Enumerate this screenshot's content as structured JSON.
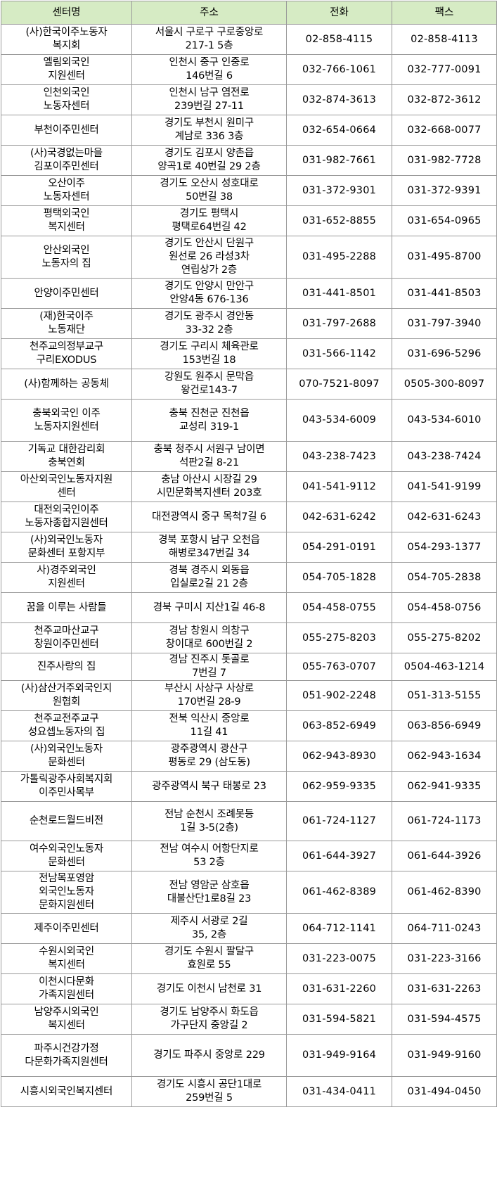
{
  "table": {
    "headers": [
      "센터명",
      "주소",
      "전화",
      "팩스"
    ],
    "rows": [
      {
        "name": "(사)한국이주노동자\n복지회",
        "address": "서울시 구로구 구로중앙로\n217-1 5층",
        "phone": "02-858-4115",
        "fax": "02-858-4113"
      },
      {
        "name": "엘림외국인\n지원센터",
        "address": "인천시 중구 인중로\n146번길 6",
        "phone": "032-766-1061",
        "fax": "032-777-0091"
      },
      {
        "name": "인천외국인\n노동자센터",
        "address": "인천시 남구 염전로\n239번길 27-11",
        "phone": "032-874-3613",
        "fax": "032-872-3612"
      },
      {
        "name": "부천이주민센터",
        "address": "경기도 부천시 원미구\n계남로 336 3층",
        "phone": "032-654-0664",
        "fax": "032-668-0077"
      },
      {
        "name": "(사)국경없는마을\n김포이주민센터",
        "address": "경기도 김포시 양촌읍\n양곡1로 40번길 29 2층",
        "phone": "031-982-7661",
        "fax": "031-982-7728"
      },
      {
        "name": "오산이주\n노동자센터",
        "address": "경기도 오산시 성호대로\n50번길 38",
        "phone": "031-372-9301",
        "fax": "031-372-9391"
      },
      {
        "name": "평택외국인\n복지센터",
        "address": "경기도 평택시\n평택로64번길 42",
        "phone": "031-652-8855",
        "fax": "031-654-0965"
      },
      {
        "name": "안산외국인\n노동자의 집",
        "address": "경기도 안산시 단원구\n원선로 26 라성3차\n연립상가 2층",
        "phone": "031-495-2288",
        "fax": "031-495-8700"
      },
      {
        "name": "안양이주민센터",
        "address": "경기도 안양시 만안구\n안양4동 676-136",
        "phone": "031-441-8501",
        "fax": "031-441-8503"
      },
      {
        "name": "(재)한국이주\n노동재단",
        "address": "경기도 광주시 경안동\n33-32 2층",
        "phone": "031-797-2688",
        "fax": "031-797-3940"
      },
      {
        "name": "천주교의정부교구\n구리EXODUS",
        "address": "경기도 구리시 체육관로\n153번길 18",
        "phone": "031-566-1142",
        "fax": "031-696-5296"
      },
      {
        "name": "(사)함께하는 공동체",
        "address": "강원도 원주시 문막읍\n왕건로143-7",
        "phone": "070-7521-8097",
        "fax": "0505-300-8097"
      },
      {
        "name": "충북외국인 이주\n노동자지원센터",
        "address": "충북 진천군 진천읍\n교성리 319-1",
        "phone": "043-534-6009",
        "fax": "043-534-6010"
      },
      {
        "name": "기독교 대한감리회\n충북연회",
        "address": "충북 청주시 서원구 남이면\n석판2길 8-21",
        "phone": "043-238-7423",
        "fax": "043-238-7424"
      },
      {
        "name": "아산외국인노동자지원\n센터",
        "address": "충남 아산시 시장길 29\n시민문화복지센터 203호",
        "phone": "041-541-9112",
        "fax": "041-541-9199"
      },
      {
        "name": "대전외국인이주\n노동자종합지원센터",
        "address": "대전광역시 중구 목척7길 6",
        "phone": "042-631-6242",
        "fax": "042-631-6243"
      },
      {
        "name": "(사)외국인노동자\n문화센터 포항지부",
        "address": "경북 포항시 남구 오천읍\n해병로347번길 34",
        "phone": "054-291-0191",
        "fax": "054-293-1377"
      },
      {
        "name": "사)경주외국인\n지원센터",
        "address": "경북 경주시 외동읍\n입실로2길 21 2층",
        "phone": "054-705-1828",
        "fax": "054-705-2838"
      },
      {
        "name": "꿈을 이루는 사람들",
        "address": "경북 구미시 지산1길 46-8",
        "phone": "054-458-0755",
        "fax": "054-458-0756"
      },
      {
        "name": "천주교마산교구\n창원이주민센터",
        "address": "경남 창원시 의창구\n창이대로 600번길 2",
        "phone": "055-275-8203",
        "fax": "055-275-8202"
      },
      {
        "name": "진주사랑의 집",
        "address": "경남 진주시 돗골로\n7번길 7",
        "phone": "055-763-0707",
        "fax": "0504-463-1214"
      },
      {
        "name": "(사)삼산거주외국인지\n원협회",
        "address": "부산시 사상구 사상로\n170번길 28-9",
        "phone": "051-902-2248",
        "fax": "051-313-5155"
      },
      {
        "name": "천주교전주교구\n성요셉노동자의 집",
        "address": "전북 익산시 중앙로\n11길 41",
        "phone": "063-852-6949",
        "fax": "063-856-6949"
      },
      {
        "name": "(사)외국인노동자\n문화센터",
        "address": "광주광역시 광산구\n평동로 29 (삼도동)",
        "phone": "062-943-8930",
        "fax": "062-943-1634"
      },
      {
        "name": "가톨릭광주사회복지회\n이주민사목부",
        "address": "광주광역시 북구 태봉로 23",
        "phone": "062-959-9335",
        "fax": "062-941-9335"
      },
      {
        "name": "순천로드월드비전",
        "address": "전남 순천시 조례못등\n1길 3-5(2층)",
        "phone": "061-724-1127",
        "fax": "061-724-1173"
      },
      {
        "name": "여수외국인노동자\n문화센터",
        "address": "전남 여수시 어항단지로\n53 2층",
        "phone": "061-644-3927",
        "fax": "061-644-3926"
      },
      {
        "name": "전남목포영암\n외국인노동자\n문화지원센터",
        "address": "전남 영암군 삼호읍\n대불산단1로8길 23",
        "phone": "061-462-8389",
        "fax": "061-462-8390"
      },
      {
        "name": "제주이주민센터",
        "address": "제주시 서광로 2길\n35, 2층",
        "phone": "064-712-1141",
        "fax": "064-711-0243"
      },
      {
        "name": "수원시외국인\n복지센터",
        "address": "경기도 수원시 팔달구\n효원로 55",
        "phone": "031-223-0075",
        "fax": "031-223-3166"
      },
      {
        "name": "이천시다문화\n가족지원센터",
        "address": "경기도 이천시 남천로 31",
        "phone": "031-631-2260",
        "fax": "031-631-2263"
      },
      {
        "name": "남양주시외국인\n복지센터",
        "address": "경기도 남양주시 화도읍\n가구단지 중앙길 2",
        "phone": "031-594-5821",
        "fax": "031-594-4575"
      },
      {
        "name": "파주시건강가정\n다문화가족지원센터",
        "address": "경기도 파주시 중앙로 229",
        "phone": "031-949-9164",
        "fax": "031-949-9160"
      },
      {
        "name": "시흥시외국인복지센터",
        "address": "경기도 시흥시 공단1대로\n259번길 5",
        "phone": "031-434-0411",
        "fax": "031-494-0450"
      }
    ]
  }
}
